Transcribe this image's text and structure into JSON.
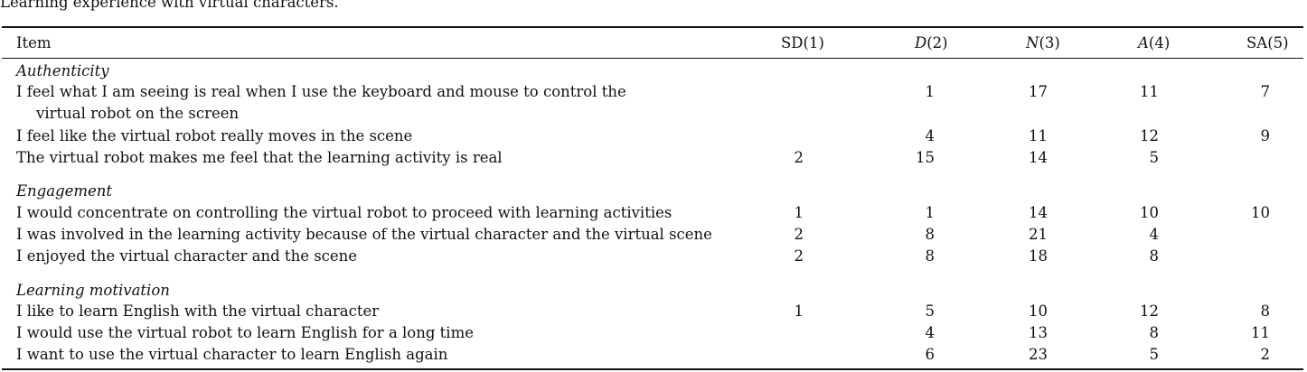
{
  "caption": "Learning experience with virtual characters.",
  "header": {
    "item": "Item",
    "sd": "SD(1)",
    "d_letter": "D",
    "d_num": "(2)",
    "n_letter": "N",
    "n_num": "(3)",
    "a_letter": "A",
    "a_num": "(4)",
    "sa": "SA(5)"
  },
  "sections": [
    {
      "title": "Authenticity",
      "rows": [
        {
          "item": "I feel what I am seeing is real when I use the keyboard and mouse to control the",
          "item_cont": "virtual robot on the screen",
          "sd": "",
          "d": "1",
          "n": "17",
          "a": "11",
          "sa": "7"
        },
        {
          "item": "I feel like the virtual robot really moves in the scene",
          "sd": "",
          "d": "4",
          "n": "11",
          "a": "12",
          "sa": "9"
        },
        {
          "item": "The virtual robot makes me feel that the learning activity is real",
          "sd": "2",
          "d": "15",
          "n": "14",
          "a": "5",
          "sa": ""
        }
      ]
    },
    {
      "title": "Engagement",
      "rows": [
        {
          "item": "I would concentrate on controlling the virtual robot to proceed with learning activities",
          "sd": "1",
          "d": "1",
          "n": "14",
          "a": "10",
          "sa": "10"
        },
        {
          "item": "I was involved in the learning activity because of the virtual character and the virtual scene",
          "sd": "2",
          "d": "8",
          "n": "21",
          "a": "4",
          "sa": ""
        },
        {
          "item": "I enjoyed the virtual character and the scene",
          "sd": "2",
          "d": "8",
          "n": "18",
          "a": "8",
          "sa": ""
        }
      ]
    },
    {
      "title": "Learning motivation",
      "rows": [
        {
          "item": "I like to learn English with the virtual character",
          "sd": "1",
          "d": "5",
          "n": "10",
          "a": "12",
          "sa": "8"
        },
        {
          "item": "I would use the virtual robot to learn English for a long time",
          "sd": "",
          "d": "4",
          "n": "13",
          "a": "8",
          "sa": "11"
        },
        {
          "item": "I want to use the virtual character to learn English again",
          "sd": "",
          "d": "6",
          "n": "23",
          "a": "5",
          "sa": "2"
        }
      ]
    }
  ]
}
